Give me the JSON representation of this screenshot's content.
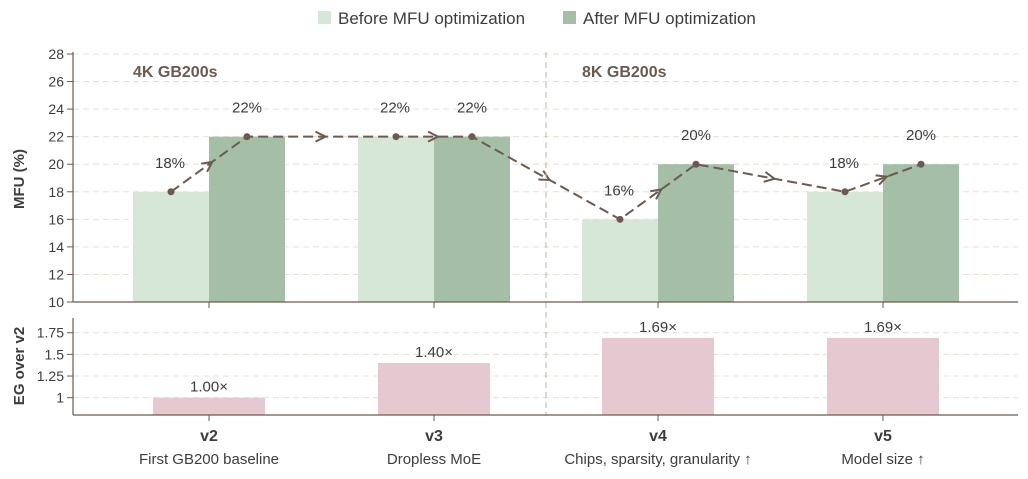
{
  "colors": {
    "before": "#d6e6d7",
    "after": "#a4bfa6",
    "eg": "#e6c8d1",
    "axis": "#6b5a50",
    "text": "#3d3d3d",
    "connector": "#6b5a50",
    "grid": "#e4e0d4"
  },
  "chart_data": [
    {
      "type": "bar",
      "ylabel": "MFU (%)",
      "ylim": [
        10,
        28
      ],
      "yticks": [
        10,
        12,
        14,
        16,
        18,
        20,
        22,
        24,
        26,
        28
      ],
      "grid": true,
      "legend": {
        "placement": "top-center",
        "entries": [
          "Before MFU optimization",
          "After MFU optimization"
        ]
      },
      "groups": [
        {
          "name": "4K GB200s",
          "categories": [
            "v2",
            "v3"
          ]
        },
        {
          "name": "8K GB200s",
          "categories": [
            "v4",
            "v5"
          ]
        }
      ],
      "categories": [
        "v2",
        "v3",
        "v4",
        "v5"
      ],
      "series": [
        {
          "name": "Before MFU optimization",
          "values": [
            18,
            22,
            16,
            18
          ],
          "labels": [
            "18%",
            "22%",
            "16%",
            "18%"
          ]
        },
        {
          "name": "After MFU optimization",
          "values": [
            22,
            22,
            20,
            20
          ],
          "labels": [
            "22%",
            "22%",
            "20%",
            "20%"
          ]
        }
      ]
    },
    {
      "type": "bar",
      "ylabel": "EG over v2",
      "ylim": [
        0.8,
        1.92
      ],
      "yticks": [
        "1",
        "1.25",
        "1.5",
        "1.75"
      ],
      "grid": true,
      "categories": [
        "v2",
        "v3",
        "v4",
        "v5"
      ],
      "category_descriptions": [
        "First GB200 baseline",
        "Dropless MoE",
        "Chips, sparsity, granularity ↑",
        "Model size ↑"
      ],
      "values": [
        1.0,
        1.4,
        1.69,
        1.69
      ],
      "labels": [
        "1.00×",
        "1.40×",
        "1.69×",
        "1.69×"
      ]
    }
  ]
}
